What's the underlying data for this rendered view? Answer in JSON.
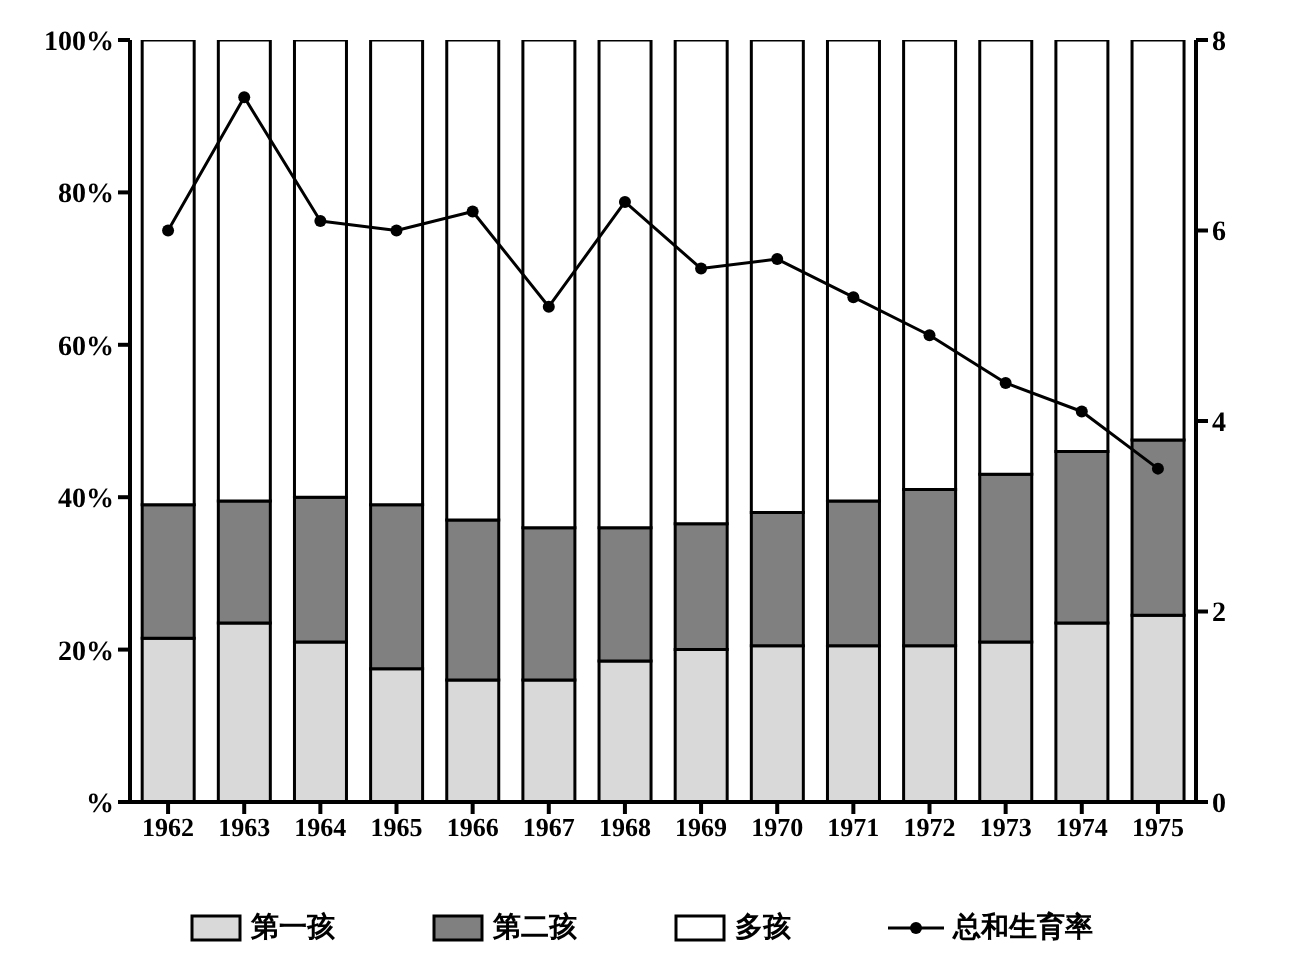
{
  "chart_data": {
    "type": "bar",
    "stacked": true,
    "categories": [
      "1962",
      "1963",
      "1964",
      "1965",
      "1966",
      "1967",
      "1968",
      "1969",
      "1970",
      "1971",
      "1972",
      "1973",
      "1974",
      "1975"
    ],
    "series": [
      {
        "name": "第一孩",
        "color": "#d9d9d9",
        "values": [
          21.5,
          23.5,
          21,
          17.5,
          16,
          16,
          18.5,
          20,
          20.5,
          20.5,
          20.5,
          21,
          23.5,
          24.5
        ]
      },
      {
        "name": "第二孩",
        "color": "#808080",
        "values": [
          17.5,
          16,
          19,
          21.5,
          21,
          20,
          17.5,
          16.5,
          17.5,
          19,
          20.5,
          22,
          22.5,
          23
        ]
      },
      {
        "name": "多孩",
        "color": "#ffffff",
        "values": [
          61,
          60.5,
          60,
          61,
          63,
          64,
          64,
          63.5,
          62,
          60.5,
          59,
          57,
          54,
          52.5
        ]
      },
      {
        "name": "总和生育率",
        "type": "line",
        "axis": "y2",
        "color": "#000000",
        "values": [
          6.0,
          7.4,
          6.1,
          6.0,
          6.2,
          5.2,
          6.3,
          5.6,
          5.7,
          5.3,
          4.9,
          4.4,
          4.1,
          3.5
        ]
      }
    ],
    "ylim": [
      0,
      100
    ],
    "yticks": [
      {
        "value": 0,
        "label": "%"
      },
      {
        "value": 20,
        "label": "20%"
      },
      {
        "value": 40,
        "label": "40%"
      },
      {
        "value": 60,
        "label": "60%"
      },
      {
        "value": 80,
        "label": "80%"
      },
      {
        "value": 100,
        "label": "100%"
      }
    ],
    "y2lim": [
      0,
      8
    ],
    "y2ticks": [
      0,
      2,
      4,
      6,
      8
    ],
    "legend": "bottom",
    "marker": "circle"
  }
}
